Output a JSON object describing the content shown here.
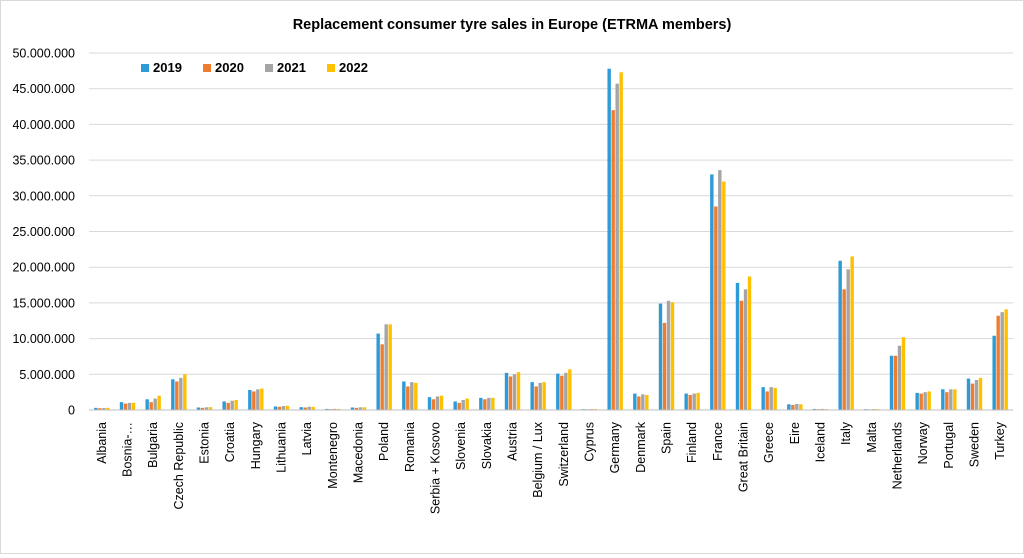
{
  "chart_data": {
    "type": "bar",
    "title": "Replacement consumer tyre sales in Europe (ETRMA members)",
    "xlabel": "",
    "ylabel": "",
    "ylim": [
      0,
      50000000
    ],
    "yticks": [
      "0",
      "5.000.000",
      "10.000.000",
      "15.000.000",
      "20.000.000",
      "25.000.000",
      "30.000.000",
      "35.000.000",
      "40.000.000",
      "45.000.000",
      "50.000.000"
    ],
    "grid": true,
    "legend_position": "top-left",
    "categories": [
      "Albania",
      "Bosnia-…",
      "Bulgaria",
      "Czech Republic",
      "Estonia",
      "Croatia",
      "Hungary",
      "Lithuania",
      "Latvia",
      "Montenegro",
      "Macedonia",
      "Poland",
      "Romania",
      "Serbia + Kosovo",
      "Slovenia",
      "Slovakia",
      "Austria",
      "Belgium / Lux",
      "Switzerland",
      "Cyprus",
      "Germany",
      "Denmark",
      "Spain",
      "Finland",
      "France",
      "Great Britain",
      "Greece",
      "Eire",
      "Iceland",
      "Italy",
      "Malta",
      "Netherlands",
      "Norway",
      "Portugal",
      "Sweden",
      "Turkey"
    ],
    "series": [
      {
        "name": "2019",
        "color": "#2e9bd6",
        "values": [
          300000,
          1100000,
          1500000,
          4300000,
          350000,
          1200000,
          2800000,
          500000,
          400000,
          150000,
          350000,
          10700000,
          4000000,
          1800000,
          1200000,
          1700000,
          5200000,
          3900000,
          5100000,
          120000,
          47800000,
          2300000,
          14900000,
          2300000,
          33000000,
          17800000,
          3200000,
          800000,
          150000,
          20900000,
          120000,
          7600000,
          2400000,
          2900000,
          4400000,
          10400000
        ]
      },
      {
        "name": "2020",
        "color": "#ed7d31",
        "values": [
          250000,
          900000,
          1100000,
          4000000,
          300000,
          1000000,
          2600000,
          450000,
          350000,
          130000,
          300000,
          9200000,
          3300000,
          1500000,
          1000000,
          1500000,
          4700000,
          3300000,
          4800000,
          100000,
          42000000,
          1900000,
          12200000,
          2100000,
          28500000,
          15300000,
          2600000,
          700000,
          120000,
          16900000,
          100000,
          7600000,
          2300000,
          2500000,
          3700000,
          13200000
        ]
      },
      {
        "name": "2021",
        "color": "#a5a5a5",
        "values": [
          280000,
          1000000,
          1600000,
          4500000,
          380000,
          1300000,
          2900000,
          550000,
          450000,
          160000,
          380000,
          12000000,
          3900000,
          1900000,
          1400000,
          1700000,
          5000000,
          3800000,
          5200000,
          130000,
          45700000,
          2200000,
          15300000,
          2300000,
          33600000,
          16900000,
          3200000,
          850000,
          150000,
          19700000,
          130000,
          9000000,
          2500000,
          2900000,
          4200000,
          13700000
        ]
      },
      {
        "name": "2022",
        "color": "#ffc000",
        "values": [
          300000,
          1000000,
          2000000,
          5000000,
          400000,
          1400000,
          3000000,
          600000,
          450000,
          150000,
          380000,
          12000000,
          3800000,
          2000000,
          1600000,
          1700000,
          5300000,
          3900000,
          5700000,
          140000,
          47300000,
          2100000,
          15100000,
          2400000,
          32000000,
          18700000,
          3100000,
          800000,
          120000,
          21500000,
          120000,
          10200000,
          2600000,
          2900000,
          4500000,
          14100000
        ]
      }
    ]
  }
}
